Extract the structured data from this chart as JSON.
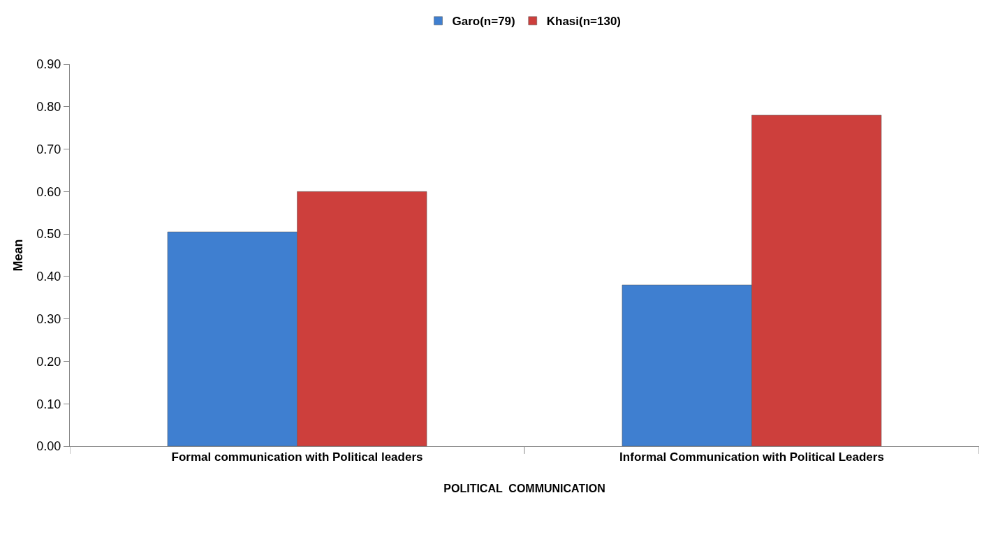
{
  "chart_data": {
    "type": "bar",
    "categories": [
      "Formal communication with Political leaders",
      "Informal Communication with Political Leaders"
    ],
    "series": [
      {
        "name": "Garo(n=79)",
        "color": "#3f7fd0",
        "values": [
          0.505,
          0.38
        ]
      },
      {
        "name": "Khasi(n=130)",
        "color": "#cd3f3c",
        "values": [
          0.6,
          0.78
        ]
      }
    ],
    "xlabel": "POLITICAL  COMMUNICATION",
    "ylabel": "Mean",
    "ylim": [
      0,
      0.9
    ],
    "yticks": [
      {
        "value": 0,
        "label": "0.00"
      },
      {
        "value": 0.1,
        "label": "0.10"
      },
      {
        "value": 0.2,
        "label": "0.20"
      },
      {
        "value": 0.3,
        "label": "0.30"
      },
      {
        "value": 0.4,
        "label": "0.40"
      },
      {
        "value": 0.5,
        "label": "0.50"
      },
      {
        "value": 0.6,
        "label": "0.60"
      },
      {
        "value": 0.7,
        "label": "0.70"
      },
      {
        "value": 0.8,
        "label": "0.80"
      },
      {
        "value": 0.9,
        "label": "0.90"
      }
    ],
    "legend": "top"
  }
}
